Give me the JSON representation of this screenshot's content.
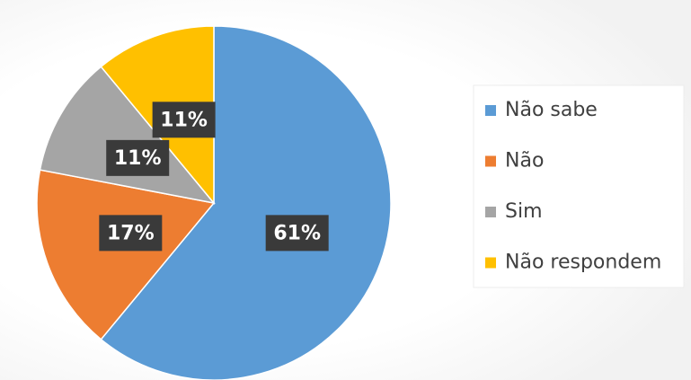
{
  "chart_data": {
    "type": "pie",
    "categories": [
      "Não sabe",
      "Não",
      "Sim",
      "Não respondem"
    ],
    "values": [
      61,
      17,
      11,
      11
    ],
    "value_labels": [
      "61%",
      "17%",
      "11%",
      "11%"
    ],
    "colors": [
      "#5b9bd5",
      "#ed7d31",
      "#a5a5a5",
      "#ffc000"
    ],
    "legend": "right"
  }
}
